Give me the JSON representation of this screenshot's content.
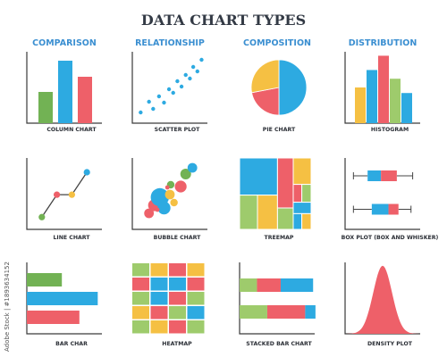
{
  "page": {
    "title": "DATA CHART TYPES",
    "categories": [
      "COMPARISON",
      "RELATIONSHIP",
      "COMPOSITION",
      "DISTRIBUTION"
    ],
    "stock_id": "Adobe Stock | #1893634152"
  },
  "colors": {
    "blue": "#2daae1",
    "red": "#ee6069",
    "green": "#72b254",
    "yellow": "#f5c043",
    "lightgreen": "#9ecb6c",
    "axis": "#3a3a3a",
    "heading": "#3b8fd1"
  },
  "chart_data": [
    {
      "type": "bar",
      "caption": "COLUMN CHART",
      "values": [
        3.5,
        7,
        5.2
      ],
      "colors": [
        "green",
        "blue",
        "red"
      ],
      "ylim": [
        0,
        8
      ]
    },
    {
      "type": "scatter",
      "caption": "SCATTER PLOT",
      "points": [
        [
          1,
          1.2
        ],
        [
          2,
          2.4
        ],
        [
          2.5,
          1.6
        ],
        [
          3.2,
          3.0
        ],
        [
          3.8,
          2.3
        ],
        [
          4.4,
          3.8
        ],
        [
          4.9,
          3.4
        ],
        [
          5.4,
          4.7
        ],
        [
          5.9,
          4.1
        ],
        [
          6.4,
          5.4
        ],
        [
          6.9,
          5.0
        ],
        [
          7.3,
          6.3
        ],
        [
          7.8,
          5.8
        ],
        [
          8.3,
          7.1
        ]
      ],
      "xlim": [
        0,
        9
      ],
      "ylim": [
        0,
        8
      ]
    },
    {
      "type": "pie",
      "caption": "PIE CHART",
      "slices": [
        {
          "value": 50,
          "color": "blue"
        },
        {
          "value": 22,
          "color": "red"
        },
        {
          "value": 28,
          "color": "yellow"
        }
      ]
    },
    {
      "type": "bar",
      "caption": "HISTOGRAM",
      "values": [
        4.5,
        6.7,
        8.5,
        5.6,
        3.8
      ],
      "colors": [
        "yellow",
        "blue",
        "red",
        "lightgreen",
        "blue"
      ],
      "ylim": [
        0,
        9
      ]
    },
    {
      "type": "line",
      "caption": "LINE CHART",
      "points": [
        [
          1,
          1.2
        ],
        [
          2,
          3.4
        ],
        [
          3,
          3.4
        ],
        [
          4,
          5.6
        ]
      ],
      "colors": [
        "green",
        "red",
        "yellow",
        "blue"
      ],
      "xlim": [
        0,
        5
      ],
      "ylim": [
        0,
        7
      ]
    },
    {
      "type": "scatter",
      "caption": "BUBBLE CHART",
      "bubbles": [
        [
          2.0,
          1.8,
          0.45,
          "red"
        ],
        [
          2.6,
          2.7,
          0.55,
          "red"
        ],
        [
          3.3,
          3.6,
          0.85,
          "blue"
        ],
        [
          3.8,
          2.4,
          0.6,
          "blue"
        ],
        [
          4.5,
          3.9,
          0.45,
          "yellow"
        ],
        [
          5.0,
          3.0,
          0.35,
          "yellow"
        ],
        [
          4.6,
          5.0,
          0.35,
          "green"
        ],
        [
          5.8,
          4.8,
          0.55,
          "red"
        ],
        [
          6.4,
          6.2,
          0.5,
          "green"
        ],
        [
          7.2,
          6.9,
          0.45,
          "blue"
        ],
        [
          3.0,
          2.2,
          0.2,
          "red"
        ],
        [
          4.2,
          4.7,
          0.2,
          "red"
        ]
      ],
      "xlim": [
        0,
        9
      ],
      "ylim": [
        0,
        8
      ]
    },
    {
      "type": "heatmap",
      "caption": "TREEMAP",
      "cells": [
        [
          0,
          0,
          0.53,
          0.52,
          "blue"
        ],
        [
          0,
          0.52,
          0.25,
          1,
          "lightgreen"
        ],
        [
          0.25,
          0.52,
          0.53,
          1,
          "yellow"
        ],
        [
          0.53,
          0,
          0.75,
          0.7,
          "red"
        ],
        [
          0.53,
          0.7,
          0.75,
          1,
          "lightgreen"
        ],
        [
          0.75,
          0,
          1,
          0.37,
          "yellow"
        ],
        [
          0.75,
          0.37,
          0.87,
          0.62,
          "red"
        ],
        [
          0.87,
          0.37,
          1,
          0.62,
          "lightgreen"
        ],
        [
          0.75,
          0.62,
          1,
          0.78,
          "blue"
        ],
        [
          0.75,
          0.78,
          0.87,
          1,
          "blue"
        ],
        [
          0.87,
          0.78,
          1,
          1,
          "yellow"
        ]
      ]
    },
    {
      "type": "box",
      "caption": "BOX PLOT (BOX AND WHISKER)",
      "boxes": [
        {
          "min": 1,
          "q1": 2.7,
          "median": 4.3,
          "q3": 6.2,
          "max": 8.1,
          "colors": [
            "blue",
            "red"
          ],
          "y": 2.4
        },
        {
          "min": 1,
          "q1": 3.2,
          "median": 5.2,
          "q3": 6.4,
          "max": 7.9,
          "colors": [
            "blue",
            "red"
          ],
          "y": 0.9
        }
      ],
      "xlim": [
        0,
        9
      ]
    },
    {
      "type": "bar",
      "orientation": "horizontal",
      "caption": "BAR CHAR",
      "values": [
        4.2,
        8.5,
        6.3
      ],
      "colors": [
        "green",
        "blue",
        "red"
      ],
      "xlim": [
        0,
        9
      ]
    },
    {
      "type": "heatmap",
      "caption": "HEATMAP",
      "grid": [
        [
          "lightgreen",
          "yellow",
          "red",
          "yellow"
        ],
        [
          "red",
          "blue",
          "blue",
          "red"
        ],
        [
          "lightgreen",
          "blue",
          "red",
          "lightgreen"
        ],
        [
          "yellow",
          "red",
          "lightgreen",
          "blue"
        ],
        [
          "lightgreen",
          "yellow",
          "red",
          "lightgreen"
        ]
      ]
    },
    {
      "type": "bar",
      "orientation": "stacked-horizontal",
      "caption": "STACKED BAR CHART",
      "series": [
        {
          "name": "",
          "values": [
            2.2,
            3.5
          ],
          "color": "lightgreen"
        },
        {
          "name": "",
          "values": [
            3.0,
            4.8
          ],
          "color": "red"
        },
        {
          "name": "",
          "values": [
            4.1,
            1.3
          ],
          "color": "blue"
        }
      ],
      "xlim": [
        0,
        9.5
      ]
    },
    {
      "type": "area",
      "caption": "DENSITY PLOT",
      "mean": 5,
      "sd": 1.25,
      "xlim": [
        0,
        10
      ],
      "ylim": [
        0,
        1.05
      ]
    }
  ]
}
